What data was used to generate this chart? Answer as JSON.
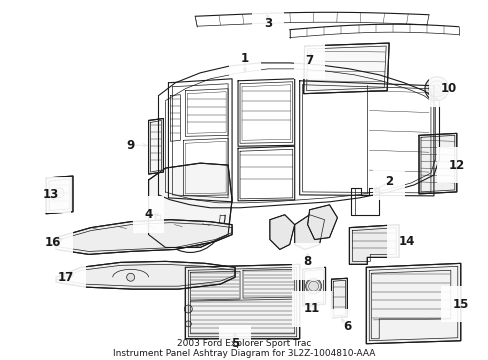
{
  "title": "2003 Ford Explorer Sport Trac\nInstrument Panel Ashtray Diagram for 3L2Z-1004810-AAA",
  "title_fontsize": 6.5,
  "background_color": "#ffffff",
  "line_color": "#1a1a1a",
  "label_fontsize": 8.5,
  "figsize": [
    4.89,
    3.6
  ],
  "dpi": 100
}
